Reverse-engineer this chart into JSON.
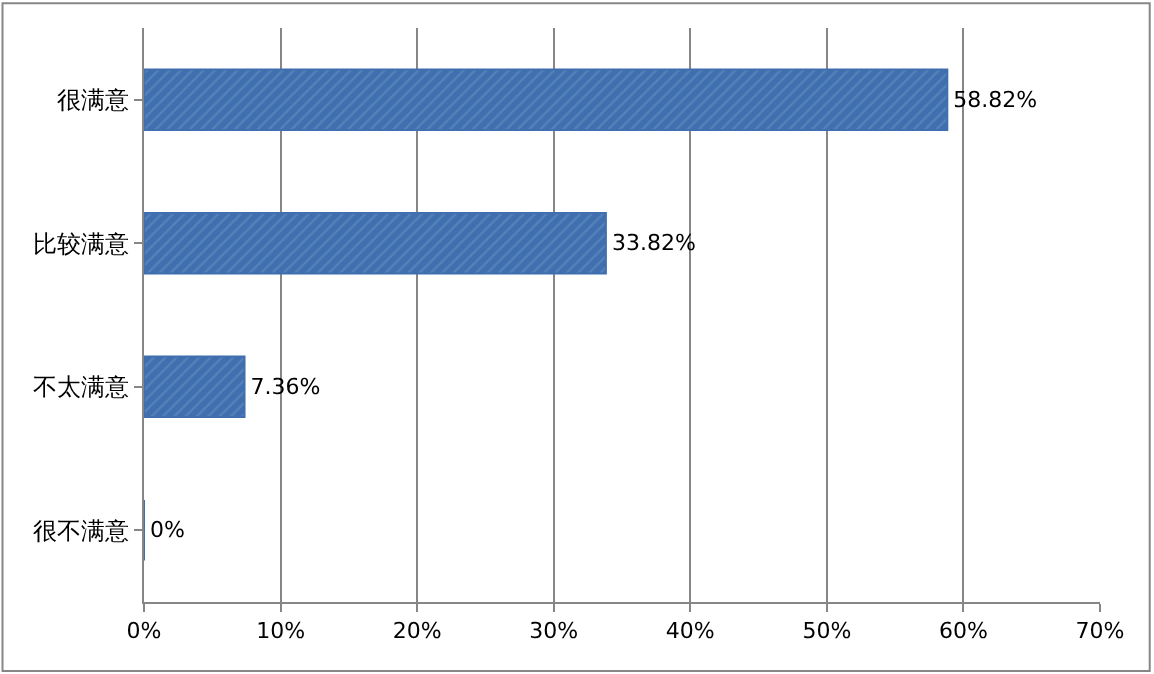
{
  "chart_data": {
    "type": "bar",
    "orientation": "horizontal",
    "categories": [
      "很满意",
      "比较满意",
      "不太满意",
      "很不满意"
    ],
    "values": [
      58.82,
      33.82,
      7.36,
      0
    ],
    "value_labels": [
      "58.82%",
      "33.82%",
      "7.36%",
      "0%"
    ],
    "color": "#3f6fae",
    "xlim": [
      0,
      70
    ],
    "xticks": [
      {
        "value": 0,
        "label": "0%"
      },
      {
        "value": 10,
        "label": "10%"
      },
      {
        "value": 20,
        "label": "20%"
      },
      {
        "value": 30,
        "label": "30%"
      },
      {
        "value": 40,
        "label": "40%"
      },
      {
        "value": 50,
        "label": "50%"
      },
      {
        "value": 60,
        "label": "60%"
      },
      {
        "value": 70,
        "label": "70%"
      }
    ],
    "grid": "x",
    "legend": false
  }
}
